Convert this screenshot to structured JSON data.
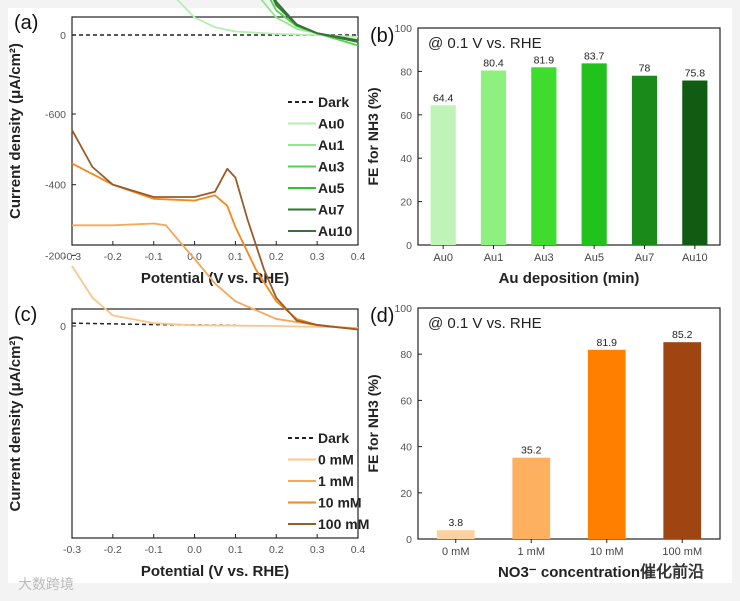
{
  "watermark_left": "大数跨境",
  "watermark_right": "催化前沿",
  "chart_data": [
    {
      "panel": "(a)",
      "type": "line",
      "xlabel": "Potential (V vs. RHE)",
      "ylabel": "Current density (μA/cm²)",
      "xlim": [
        -0.3,
        0.4
      ],
      "ylim": [
        -600,
        50
      ],
      "xticks": [
        "-0.3",
        "-0.2",
        "-0.1",
        "0.0",
        "0.1",
        "0.2",
        "0.3",
        "0.4"
      ],
      "yticks": [
        "0",
        "-200",
        "-400",
        "-600"
      ],
      "legend_position": "bottom-right",
      "series": [
        {
          "name": "Dark",
          "color": "#222222",
          "dashed": true,
          "points": [
            [
              -0.3,
              0
            ],
            [
              0.4,
              0
            ]
          ]
        },
        {
          "name": "Au0",
          "color": "#b5eeb0",
          "points": [
            [
              -0.3,
              -250
            ],
            [
              -0.2,
              -245
            ],
            [
              -0.15,
              -235
            ],
            [
              -0.1,
              -180
            ],
            [
              -0.05,
              -110
            ],
            [
              0,
              -50
            ],
            [
              0.05,
              -22
            ],
            [
              0.1,
              -10
            ],
            [
              0.2,
              -3
            ],
            [
              0.3,
              0
            ],
            [
              0.4,
              5
            ]
          ]
        },
        {
          "name": "Au1",
          "color": "#8fe88a",
          "points": [
            [
              -0.3,
              -310
            ],
            [
              -0.2,
              -300
            ],
            [
              -0.1,
              -295
            ],
            [
              -0.05,
              -300
            ],
            [
              0,
              -320
            ],
            [
              0.03,
              -295
            ],
            [
              0.08,
              -230
            ],
            [
              0.15,
              -120
            ],
            [
              0.2,
              -50
            ],
            [
              0.25,
              -18
            ],
            [
              0.3,
              -5
            ],
            [
              0.4,
              20
            ]
          ]
        },
        {
          "name": "Au3",
          "color": "#4fd64a",
          "points": [
            [
              -0.3,
              -445
            ],
            [
              -0.2,
              -420
            ],
            [
              -0.1,
              -415
            ],
            [
              0,
              -420
            ],
            [
              0.04,
              -440
            ],
            [
              0.06,
              -420
            ],
            [
              0.1,
              -310
            ],
            [
              0.15,
              -180
            ],
            [
              0.2,
              -70
            ],
            [
              0.25,
              -25
            ],
            [
              0.3,
              -5
            ],
            [
              0.4,
              30
            ]
          ]
        },
        {
          "name": "Au5",
          "color": "#2fc42c",
          "points": [
            [
              -0.3,
              -530
            ],
            [
              -0.2,
              -470
            ],
            [
              -0.1,
              -450
            ],
            [
              0,
              -440
            ],
            [
              0.05,
              -490
            ],
            [
              0.07,
              -520
            ],
            [
              0.09,
              -480
            ],
            [
              0.12,
              -350
            ],
            [
              0.16,
              -200
            ],
            [
              0.2,
              -90
            ],
            [
              0.25,
              -30
            ],
            [
              0.3,
              -5
            ],
            [
              0.4,
              15
            ]
          ]
        },
        {
          "name": "Au7",
          "color": "#2e7a2e",
          "points": [
            [
              -0.3,
              -480
            ],
            [
              -0.2,
              -445
            ],
            [
              -0.1,
              -440
            ],
            [
              0,
              -430
            ],
            [
              0.04,
              -460
            ],
            [
              0.065,
              -490
            ],
            [
              0.09,
              -440
            ],
            [
              0.12,
              -330
            ],
            [
              0.16,
              -190
            ],
            [
              0.2,
              -85
            ],
            [
              0.25,
              -28
            ],
            [
              0.3,
              -5
            ],
            [
              0.4,
              20
            ]
          ]
        },
        {
          "name": "Au10",
          "color": "#3d6e3d",
          "points": [
            [
              -0.3,
              -465
            ],
            [
              -0.2,
              -410
            ],
            [
              -0.1,
              -395
            ],
            [
              -0.03,
              -385
            ],
            [
              0.03,
              -400
            ],
            [
              0.06,
              -445
            ],
            [
              0.08,
              -460
            ],
            [
              0.1,
              -420
            ],
            [
              0.13,
              -310
            ],
            [
              0.17,
              -180
            ],
            [
              0.2,
              -95
            ],
            [
              0.25,
              -30
            ],
            [
              0.3,
              -5
            ],
            [
              0.4,
              15
            ]
          ]
        }
      ]
    },
    {
      "panel": "(b)",
      "type": "bar",
      "annotation": "@ 0.1 V vs. RHE",
      "xlabel": "Au deposition (min)",
      "ylabel": "FE for NH3 (%)",
      "ylim": [
        0,
        100
      ],
      "yticks": [
        "0",
        "20",
        "40",
        "60",
        "80",
        "100"
      ],
      "categories": [
        "Au0",
        "Au1",
        "Au3",
        "Au5",
        "Au7",
        "Au10"
      ],
      "values": [
        64.4,
        80.4,
        81.9,
        83.7,
        78,
        75.8
      ],
      "labels": [
        "64.4",
        "80.4",
        "81.9",
        "83.7",
        "78",
        "75.8"
      ],
      "colors": [
        "#bff3b8",
        "#8ef07f",
        "#3edc2c",
        "#22c21c",
        "#1a8a1a",
        "#0f5c12"
      ]
    },
    {
      "panel": "(c)",
      "type": "line",
      "xlabel": "Potential (V vs. RHE)",
      "ylabel": "Current density (μA/cm²)",
      "xlim": [
        -0.3,
        0.4
      ],
      "ylim": [
        -600,
        50
      ],
      "xticks": [
        "-0.3",
        "-0.2",
        "-0.1",
        "0.0",
        "0.1",
        "0.2",
        "0.3",
        "0.4"
      ],
      "yticks": [
        "0",
        "-200",
        "-400",
        "-600"
      ],
      "legend_position": "bottom-right",
      "series": [
        {
          "name": "Dark",
          "color": "#222222",
          "dashed": true,
          "points": [
            [
              -0.3,
              -8
            ],
            [
              -0.1,
              -4
            ],
            [
              0.1,
              -2
            ]
          ]
        },
        {
          "name": "0 mM",
          "color": "#fbc58c",
          "points": [
            [
              -0.3,
              -170
            ],
            [
              -0.25,
              -80
            ],
            [
              -0.2,
              -30
            ],
            [
              -0.1,
              -8
            ],
            [
              0,
              -2
            ],
            [
              0.2,
              0
            ],
            [
              0.4,
              5
            ]
          ]
        },
        {
          "name": "1 mM",
          "color": "#f5a75a",
          "points": [
            [
              -0.3,
              -285
            ],
            [
              -0.2,
              -285
            ],
            [
              -0.1,
              -290
            ],
            [
              -0.07,
              -285
            ],
            [
              -0.03,
              -230
            ],
            [
              0,
              -190
            ],
            [
              0.05,
              -120
            ],
            [
              0.1,
              -70
            ],
            [
              0.2,
              -20
            ],
            [
              0.3,
              -2
            ],
            [
              0.4,
              8
            ]
          ]
        },
        {
          "name": "10 mM",
          "color": "#f08a1c",
          "points": [
            [
              -0.3,
              -460
            ],
            [
              -0.2,
              -400
            ],
            [
              -0.1,
              -360
            ],
            [
              0,
              -355
            ],
            [
              0.05,
              -370
            ],
            [
              0.08,
              -340
            ],
            [
              0.1,
              -280
            ],
            [
              0.15,
              -160
            ],
            [
              0.2,
              -70
            ],
            [
              0.25,
              -20
            ],
            [
              0.3,
              -3
            ],
            [
              0.4,
              10
            ]
          ]
        },
        {
          "name": "100 mM",
          "color": "#9a5a2a",
          "points": [
            [
              -0.3,
              -555
            ],
            [
              -0.25,
              -450
            ],
            [
              -0.2,
              -400
            ],
            [
              -0.1,
              -365
            ],
            [
              0,
              -365
            ],
            [
              0.05,
              -380
            ],
            [
              0.08,
              -445
            ],
            [
              0.1,
              -420
            ],
            [
              0.13,
              -300
            ],
            [
              0.17,
              -160
            ],
            [
              0.2,
              -80
            ],
            [
              0.25,
              -15
            ],
            [
              0.3,
              -3
            ],
            [
              0.4,
              10
            ]
          ]
        }
      ]
    },
    {
      "panel": "(d)",
      "type": "bar",
      "annotation": "@ 0.1 V vs. RHE",
      "xlabel": "NO3⁻ concentration",
      "ylabel": "FE for NH3 (%)",
      "ylim": [
        0,
        100
      ],
      "yticks": [
        "0",
        "20",
        "40",
        "60",
        "80",
        "100"
      ],
      "categories": [
        "0 mM",
        "1 mM",
        "10 mM",
        "100 mM"
      ],
      "values": [
        3.8,
        35.2,
        81.9,
        85.2
      ],
      "labels": [
        "3.8",
        "35.2",
        "81.9",
        "85.2"
      ],
      "colors": [
        "#fdd1a0",
        "#fdb060",
        "#ff8000",
        "#9e4512"
      ]
    }
  ]
}
